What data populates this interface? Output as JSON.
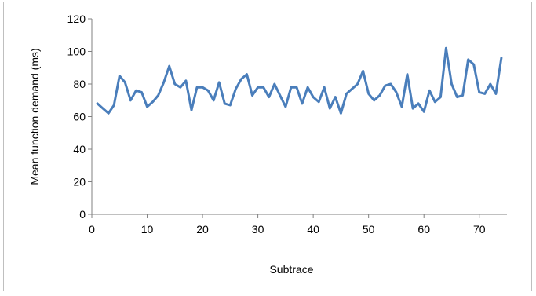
{
  "chart_data": {
    "type": "line",
    "title": "",
    "xlabel": "Subtrace",
    "ylabel": "Mean function demand (ms)",
    "xlim": [
      0,
      75
    ],
    "ylim": [
      0,
      120
    ],
    "x_ticks": [
      0,
      10,
      20,
      30,
      40,
      50,
      60,
      70
    ],
    "y_ticks": [
      0,
      20,
      40,
      60,
      80,
      100,
      120
    ],
    "grid": false,
    "legend": "none",
    "series": [
      {
        "color": "#4a7ebb",
        "x": [
          1,
          2,
          3,
          4,
          5,
          6,
          7,
          8,
          9,
          10,
          11,
          12,
          13,
          14,
          15,
          16,
          17,
          18,
          19,
          20,
          21,
          22,
          23,
          24,
          25,
          26,
          27,
          28,
          29,
          30,
          31,
          32,
          33,
          34,
          35,
          36,
          37,
          38,
          39,
          40,
          41,
          42,
          43,
          44,
          45,
          46,
          47,
          48,
          49,
          50,
          51,
          52,
          53,
          54,
          55,
          56,
          57,
          58,
          59,
          60,
          61,
          62,
          63,
          64,
          65,
          66,
          67,
          68,
          69,
          70,
          71,
          72,
          73,
          74
        ],
        "values": [
          68,
          65,
          62,
          67,
          85,
          81,
          70,
          76,
          75,
          66,
          69,
          73,
          81,
          91,
          80,
          78,
          82,
          64,
          78,
          78,
          76,
          70,
          81,
          68,
          67,
          77,
          83,
          86,
          73,
          78,
          78,
          72,
          80,
          73,
          66,
          78,
          78,
          68,
          78,
          72,
          69,
          78,
          65,
          72,
          62,
          74,
          77,
          80,
          88,
          74,
          70,
          73,
          79,
          80,
          75,
          66,
          86,
          65,
          68,
          63,
          76,
          69,
          72,
          102,
          80,
          72,
          73,
          95,
          92,
          75,
          74,
          80,
          74,
          96
        ]
      }
    ]
  }
}
